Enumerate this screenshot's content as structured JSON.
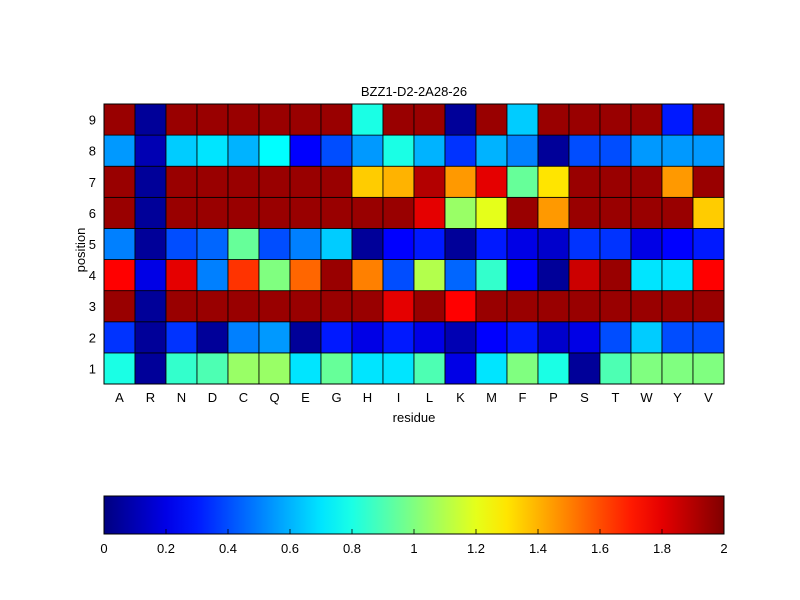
{
  "chart_data": {
    "type": "heatmap",
    "title": "BZZ1-D2-2A28-26",
    "xlabel": "residue",
    "ylabel": "position",
    "x_categories": [
      "A",
      "R",
      "N",
      "D",
      "C",
      "Q",
      "E",
      "G",
      "H",
      "I",
      "L",
      "K",
      "M",
      "F",
      "P",
      "S",
      "T",
      "W",
      "Y",
      "V"
    ],
    "y_categories": [
      "1",
      "2",
      "3",
      "4",
      "5",
      "6",
      "7",
      "8",
      "9"
    ],
    "colormap": "jet",
    "clim": [
      0,
      2
    ],
    "values": [
      [
        0.8,
        0.05,
        0.85,
        0.9,
        1.05,
        1.05,
        0.7,
        0.95,
        0.7,
        0.7,
        0.9,
        0.2,
        0.7,
        1.0,
        0.8,
        0.05,
        0.9,
        1.0,
        1.0,
        1.0
      ],
      [
        0.35,
        0.05,
        0.35,
        0.05,
        0.5,
        0.55,
        0.05,
        0.3,
        0.2,
        0.3,
        0.2,
        0.1,
        0.25,
        0.3,
        0.15,
        0.2,
        0.4,
        0.65,
        0.4,
        0.4
      ],
      [
        1.95,
        0.05,
        1.95,
        1.95,
        1.95,
        1.95,
        1.95,
        1.95,
        1.95,
        1.8,
        1.95,
        1.75,
        1.95,
        1.95,
        1.95,
        1.95,
        1.95,
        1.95,
        1.95,
        1.95
      ],
      [
        1.75,
        0.2,
        1.8,
        0.5,
        1.65,
        1.0,
        1.55,
        1.95,
        1.5,
        0.4,
        1.1,
        0.45,
        0.85,
        0.25,
        0.05,
        1.85,
        1.95,
        0.7,
        0.7,
        1.75
      ],
      [
        0.5,
        0.05,
        0.4,
        0.45,
        0.95,
        0.4,
        0.5,
        0.65,
        0.05,
        0.25,
        0.3,
        0.05,
        0.3,
        0.2,
        0.15,
        0.35,
        0.35,
        0.2,
        0.25,
        0.3
      ],
      [
        1.95,
        0.05,
        1.95,
        1.95,
        1.95,
        1.95,
        1.95,
        1.95,
        1.95,
        1.95,
        1.8,
        1.05,
        1.2,
        1.95,
        1.45,
        1.95,
        1.95,
        1.95,
        1.95,
        1.35
      ],
      [
        1.95,
        0.05,
        1.95,
        1.95,
        1.95,
        1.95,
        1.95,
        1.95,
        1.35,
        1.4,
        1.9,
        1.45,
        1.8,
        0.95,
        1.3,
        1.95,
        1.95,
        1.95,
        1.45,
        1.95
      ],
      [
        0.55,
        0.1,
        0.65,
        0.7,
        0.6,
        0.75,
        0.25,
        0.4,
        0.55,
        0.8,
        0.6,
        0.35,
        0.6,
        0.5,
        0.05,
        0.4,
        0.4,
        0.55,
        0.55,
        0.55
      ],
      [
        1.95,
        0.05,
        1.95,
        1.95,
        1.95,
        1.95,
        1.95,
        1.95,
        0.8,
        1.95,
        1.95,
        0.05,
        1.95,
        0.65,
        1.95,
        1.95,
        1.95,
        1.95,
        0.3,
        1.95
      ]
    ],
    "colorbar": {
      "ticks": [
        0,
        0.2,
        0.4,
        0.6,
        0.8,
        1,
        1.2,
        1.4,
        1.6,
        1.8,
        2
      ],
      "tick_labels": [
        "0",
        "0.2",
        "0.4",
        "0.6",
        "0.8",
        "1",
        "1.2",
        "1.4",
        "1.6",
        "1.8",
        "2"
      ]
    }
  }
}
